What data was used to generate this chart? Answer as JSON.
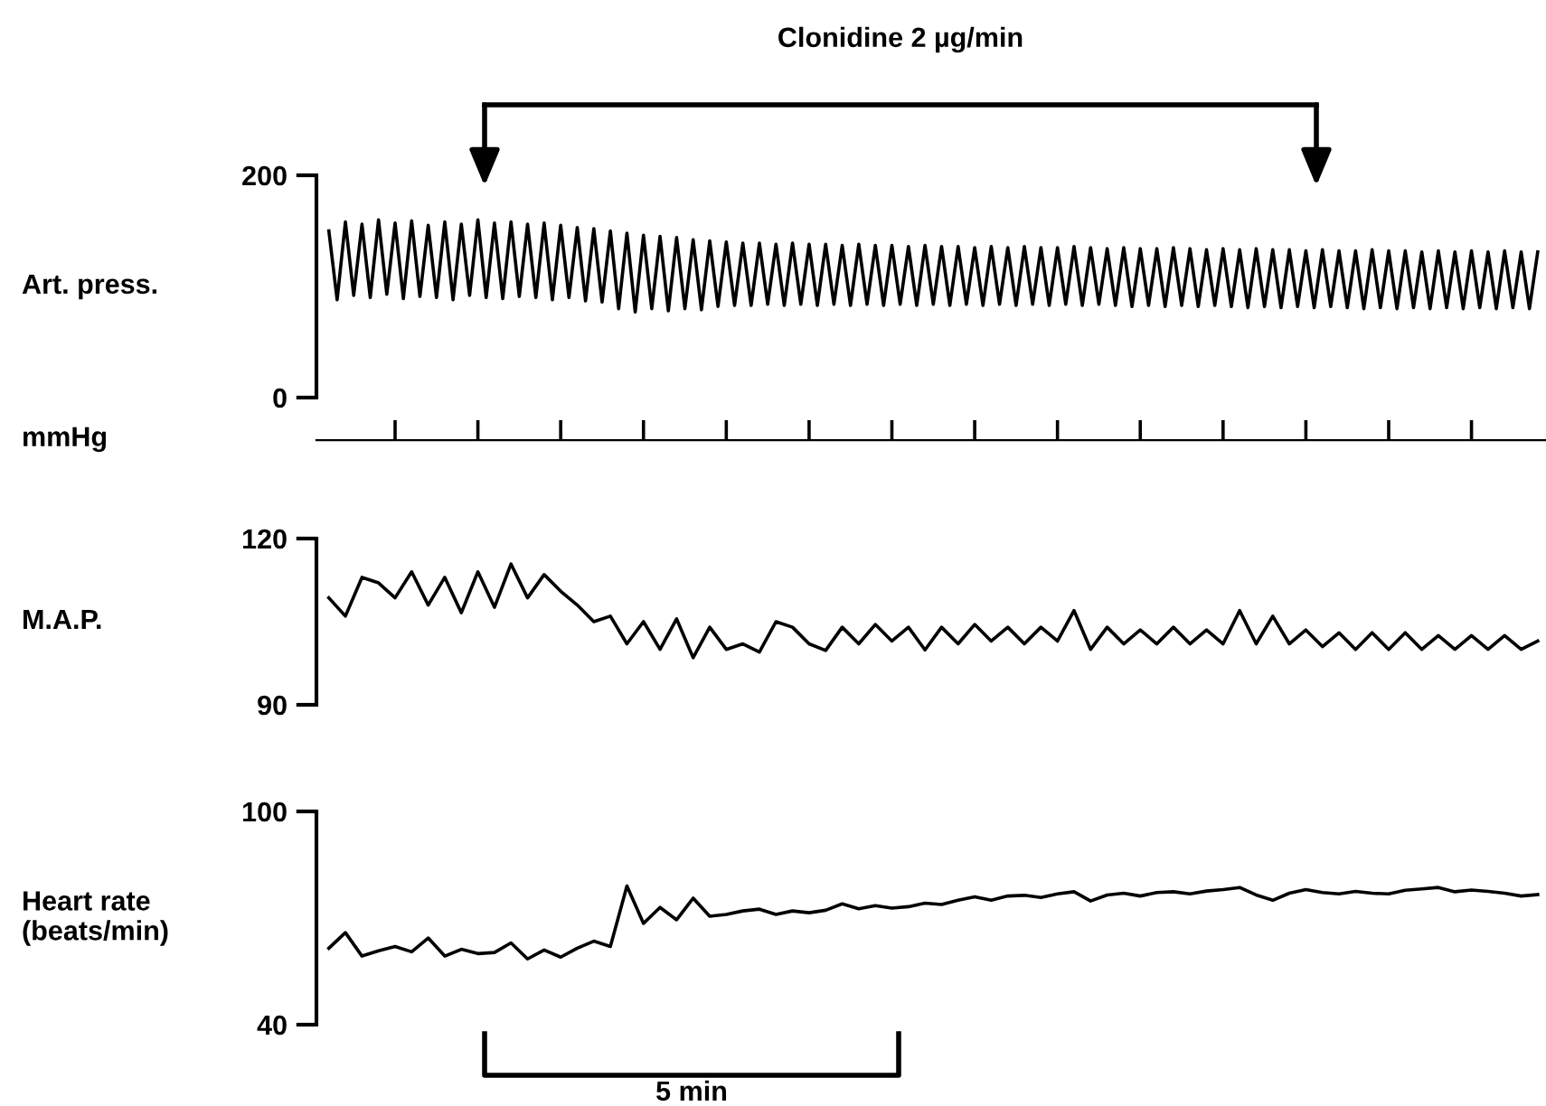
{
  "chart_data": [
    {
      "type": "line",
      "ylabel": "Art. press.",
      "annotations": [
        "Clonidine 2 µg/min",
        "mmHg"
      ],
      "ylim": [
        0,
        200
      ],
      "yticks": [
        0,
        200
      ],
      "tick_labels": "y",
      "categories": [
        null,
        null,
        null,
        null,
        null,
        null,
        null,
        null,
        null,
        null,
        null,
        null,
        null,
        null,
        null,
        null,
        null,
        null,
        null,
        null,
        null,
        null,
        null,
        null,
        null,
        null,
        null,
        null,
        null,
        null,
        null,
        null,
        null,
        null,
        null,
        null,
        null,
        null,
        null,
        null,
        null,
        null,
        null,
        null,
        null,
        null,
        null,
        null,
        null,
        null,
        null,
        null,
        null,
        null,
        null,
        null,
        null,
        null,
        null,
        null,
        null,
        null,
        null,
        null,
        null,
        null,
        null,
        null,
        null,
        null,
        null,
        null,
        null,
        null,
        null,
        null,
        null,
        null,
        null,
        null,
        null,
        null,
        null,
        null,
        null,
        null,
        null,
        null,
        null,
        null,
        null,
        null,
        null,
        null,
        null,
        null,
        null,
        null,
        null,
        null,
        null,
        null,
        null,
        null,
        null,
        null,
        null,
        null,
        null,
        null,
        null,
        null,
        null,
        null,
        null,
        null,
        null,
        null,
        null,
        null,
        null,
        null,
        null,
        null,
        null,
        null,
        null,
        null,
        null,
        null,
        null,
        null,
        null,
        null,
        null,
        null,
        null,
        null,
        null,
        null,
        null,
        null,
        null,
        null,
        null,
        null,
        null
      ],
      "series": [
        {
          "color": "#000000",
          "values": [
            150,
            88,
            158,
            92,
            156,
            90,
            160,
            93,
            157,
            89,
            159,
            91,
            155,
            90,
            158,
            88,
            156,
            92,
            160,
            90,
            157,
            89,
            158,
            91,
            156,
            90,
            157,
            88,
            155,
            90,
            153,
            87,
            152,
            86,
            150,
            80,
            148,
            77,
            146,
            80,
            145,
            78,
            144,
            80,
            142,
            79,
            141,
            82,
            140,
            83,
            139,
            83,
            139,
            84,
            138,
            83,
            139,
            84,
            138,
            83,
            138,
            84,
            137,
            83,
            138,
            84,
            137,
            83,
            137,
            84,
            136,
            83,
            137,
            84,
            136,
            83,
            136,
            84,
            135,
            83,
            136,
            84,
            135,
            83,
            136,
            84,
            135,
            83,
            135,
            84,
            136,
            83,
            135,
            84,
            134,
            83,
            135,
            82,
            134,
            83,
            134,
            82,
            135,
            83,
            134,
            82,
            133,
            83,
            134,
            82,
            133,
            81,
            134,
            82,
            133,
            81,
            133,
            82,
            132,
            81,
            133,
            82,
            132,
            81,
            132,
            80,
            133,
            81,
            132,
            80,
            132,
            81,
            131,
            80,
            132,
            81,
            131,
            80,
            132,
            81,
            131,
            80,
            132,
            81,
            131,
            80,
            131
          ]
        }
      ]
    },
    {
      "type": "line",
      "ylabel": "M.A.P.",
      "ylim": [
        90,
        120
      ],
      "yticks": [
        90,
        120
      ],
      "tick_labels": "y",
      "categories": [
        null,
        null,
        null,
        null,
        null,
        null,
        null,
        null,
        null,
        null,
        null,
        null,
        null,
        null,
        null,
        null,
        null,
        null,
        null,
        null,
        null,
        null,
        null,
        null,
        null,
        null,
        null,
        null,
        null,
        null,
        null,
        null,
        null,
        null,
        null,
        null,
        null,
        null,
        null,
        null,
        null,
        null,
        null,
        null,
        null,
        null,
        null,
        null,
        null,
        null,
        null,
        null,
        null,
        null,
        null,
        null,
        null,
        null,
        null,
        null,
        null,
        null,
        null,
        null,
        null,
        null,
        null,
        null,
        null,
        null,
        null,
        null,
        null,
        null
      ],
      "series": [
        {
          "color": "#000000",
          "values": [
            109.3,
            106,
            113,
            112,
            109.3,
            114,
            108,
            113,
            106.6,
            114,
            107.6,
            115.4,
            109.3,
            113.5,
            110.5,
            108,
            105,
            106,
            101,
            105,
            100,
            105.5,
            98.5,
            104,
            100,
            101,
            99.5,
            105,
            104,
            101,
            99.8,
            104,
            101,
            104.5,
            101.5,
            104,
            99.9,
            104,
            101,
            104.5,
            101.5,
            104,
            101,
            104,
            101.5,
            107,
            100,
            104,
            101,
            103.5,
            101,
            104,
            101,
            103.5,
            101,
            107,
            101,
            106,
            101,
            103.5,
            100.5,
            103,
            100,
            103,
            100,
            103,
            100,
            102.5,
            100,
            102.5,
            100,
            102.5,
            100,
            101.5
          ]
        }
      ]
    },
    {
      "type": "line",
      "ylabel": "Heart rate\n(beats/min)",
      "annotations": [
        "5 min"
      ],
      "ylim": [
        40,
        100
      ],
      "yticks": [
        40,
        100
      ],
      "tick_labels": "y",
      "categories": [
        null,
        null,
        null,
        null,
        null,
        null,
        null,
        null,
        null,
        null,
        null,
        null,
        null,
        null,
        null,
        null,
        null,
        null,
        null,
        null,
        null,
        null,
        null,
        null,
        null,
        null,
        null,
        null,
        null,
        null,
        null,
        null,
        null,
        null,
        null,
        null,
        null,
        null,
        null,
        null,
        null,
        null,
        null,
        null,
        null,
        null,
        null,
        null,
        null,
        null,
        null,
        null,
        null,
        null,
        null,
        null,
        null,
        null,
        null,
        null,
        null,
        null,
        null,
        null,
        null,
        null,
        null,
        null,
        null,
        null,
        null,
        null,
        null,
        null
      ],
      "series": [
        {
          "color": "#000000",
          "values": [
            61.5,
            65.9,
            59.3,
            60.8,
            62,
            60.5,
            64.4,
            59.3,
            61.2,
            60,
            60.3,
            63,
            58.5,
            61,
            59,
            61.5,
            63.5,
            62,
            79,
            68.5,
            73,
            69.5,
            75.6,
            70.5,
            71,
            72,
            72.5,
            71,
            72,
            71.5,
            72.2,
            74,
            72.6,
            73.5,
            72.8,
            73.2,
            74.2,
            73.8,
            75,
            76,
            75,
            76.2,
            76.4,
            75.8,
            76.8,
            77.4,
            74.8,
            76.5,
            77,
            76.2,
            77.2,
            77.4,
            76.8,
            77.6,
            78,
            78.6,
            76.5,
            75,
            77,
            78,
            77.2,
            76.8,
            77.5,
            77,
            76.8,
            77.8,
            78.2,
            78.6,
            77.4,
            77.9,
            77.5,
            77,
            76.2,
            76.6
          ]
        }
      ]
    }
  ]
}
